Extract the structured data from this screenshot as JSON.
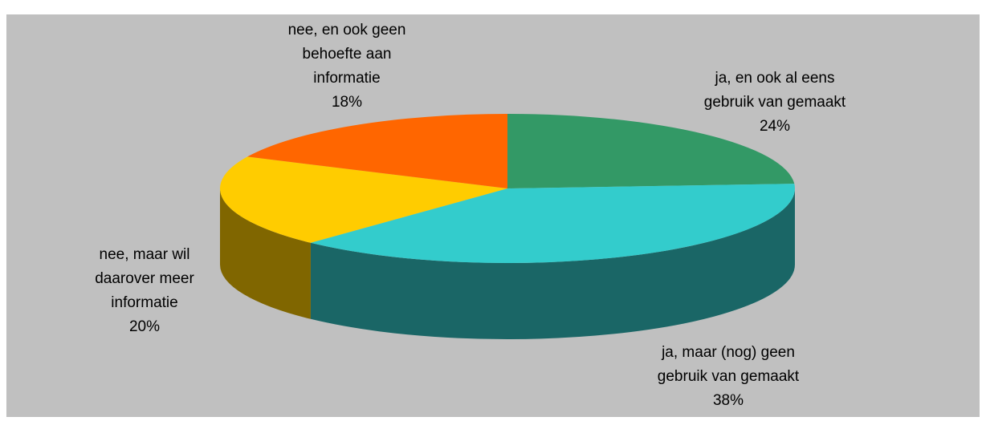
{
  "chart_data": {
    "type": "pie",
    "categories": [
      [
        "ja, en ook al eens",
        "gebruik van gemaakt"
      ],
      [
        "ja, maar (nog) geen",
        "gebruik van gemaakt"
      ],
      [
        "nee, maar wil",
        "daarover meer",
        "informatie"
      ],
      [
        "nee, en ook geen",
        "behoefte aan",
        "informatie"
      ]
    ],
    "values": [
      24,
      38,
      20,
      18
    ],
    "value_labels": [
      "24%",
      "38%",
      "20%",
      "18%"
    ],
    "colors": [
      "#339966",
      "#33cccc",
      "#ffcc00",
      "#ff6600"
    ]
  }
}
